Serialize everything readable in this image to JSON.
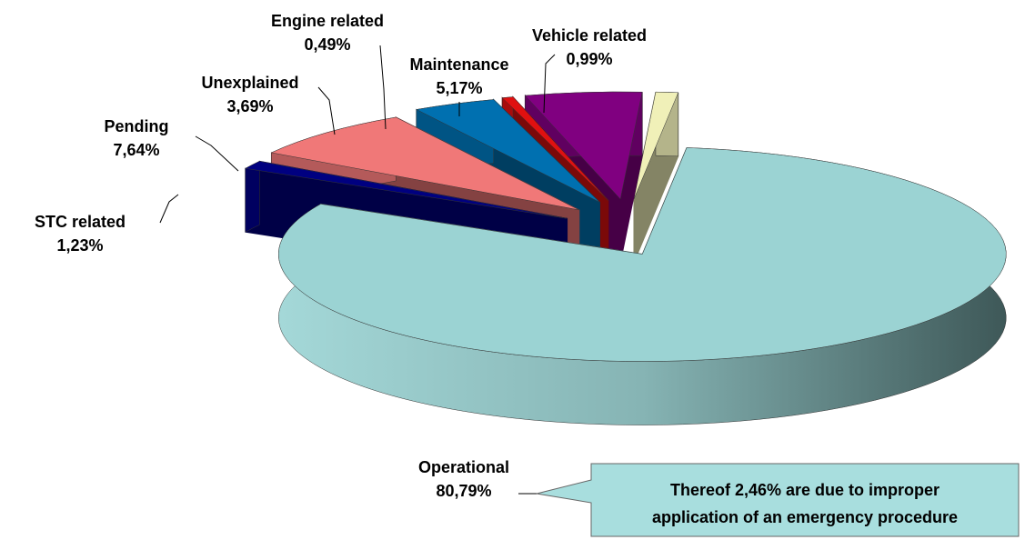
{
  "chart_data": {
    "type": "pie",
    "categories": [
      "Operational",
      "STC related",
      "Pending",
      "Unexplained",
      "Engine related",
      "Maintenance",
      "Vehicle related"
    ],
    "values": [
      80.79,
      1.23,
      7.64,
      3.69,
      0.49,
      5.17,
      0.99
    ],
    "value_labels": [
      "80,79%",
      "1,23%",
      "7,64%",
      "3,69%",
      "0,49%",
      "5,17%",
      "0,99%"
    ],
    "colors": [
      "#9bd3d3",
      "#000080",
      "#f07878",
      "#0070b0",
      "#e01010",
      "#800080",
      "#f0f0b8"
    ],
    "annotation": [
      "Thereof 2,46% are due to improper",
      "application of an emergency procedure"
    ]
  }
}
